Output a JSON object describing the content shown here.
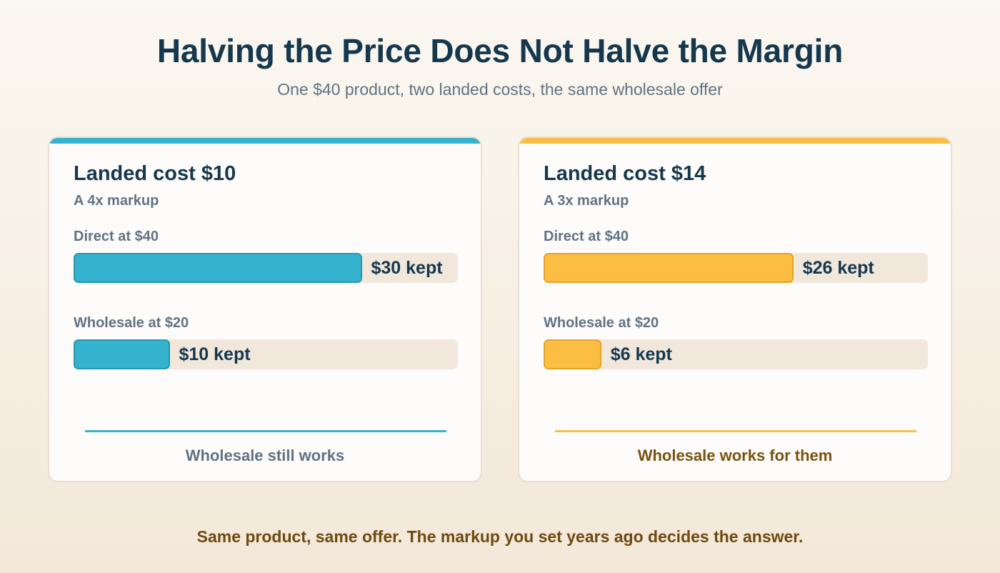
{
  "colors": {
    "left_accent": "#35b2cd",
    "left_accent_border": "#2597b1",
    "right_accent": "#fcbe42",
    "right_accent_border": "#e9a128",
    "left_verdict": "#607383",
    "right_verdict": "#7a5210"
  },
  "header": {
    "title": "Halving the Price Does Not Halve the Margin",
    "subtitle": "One $40 product, two landed costs, the same wholesale offer"
  },
  "chart_data": {
    "type": "bar",
    "axis_max": 40,
    "panels": [
      {
        "title": "Landed cost $10",
        "subtitle": "A 4x markup",
        "verdict": "Wholesale still works",
        "bars": [
          {
            "label": "Direct at $40",
            "value": 30,
            "value_label": "$30 kept"
          },
          {
            "label": "Wholesale at $20",
            "value": 10,
            "value_label": "$10 kept"
          }
        ]
      },
      {
        "title": "Landed cost $14",
        "subtitle": "A 3x markup",
        "verdict": "Wholesale works for them",
        "bars": [
          {
            "label": "Direct at $40",
            "value": 26,
            "value_label": "$26 kept"
          },
          {
            "label": "Wholesale at $20",
            "value": 6,
            "value_label": "$6 kept"
          }
        ]
      }
    ]
  },
  "footer": {
    "text": "Same product, same offer. The markup you set years ago decides the answer."
  }
}
